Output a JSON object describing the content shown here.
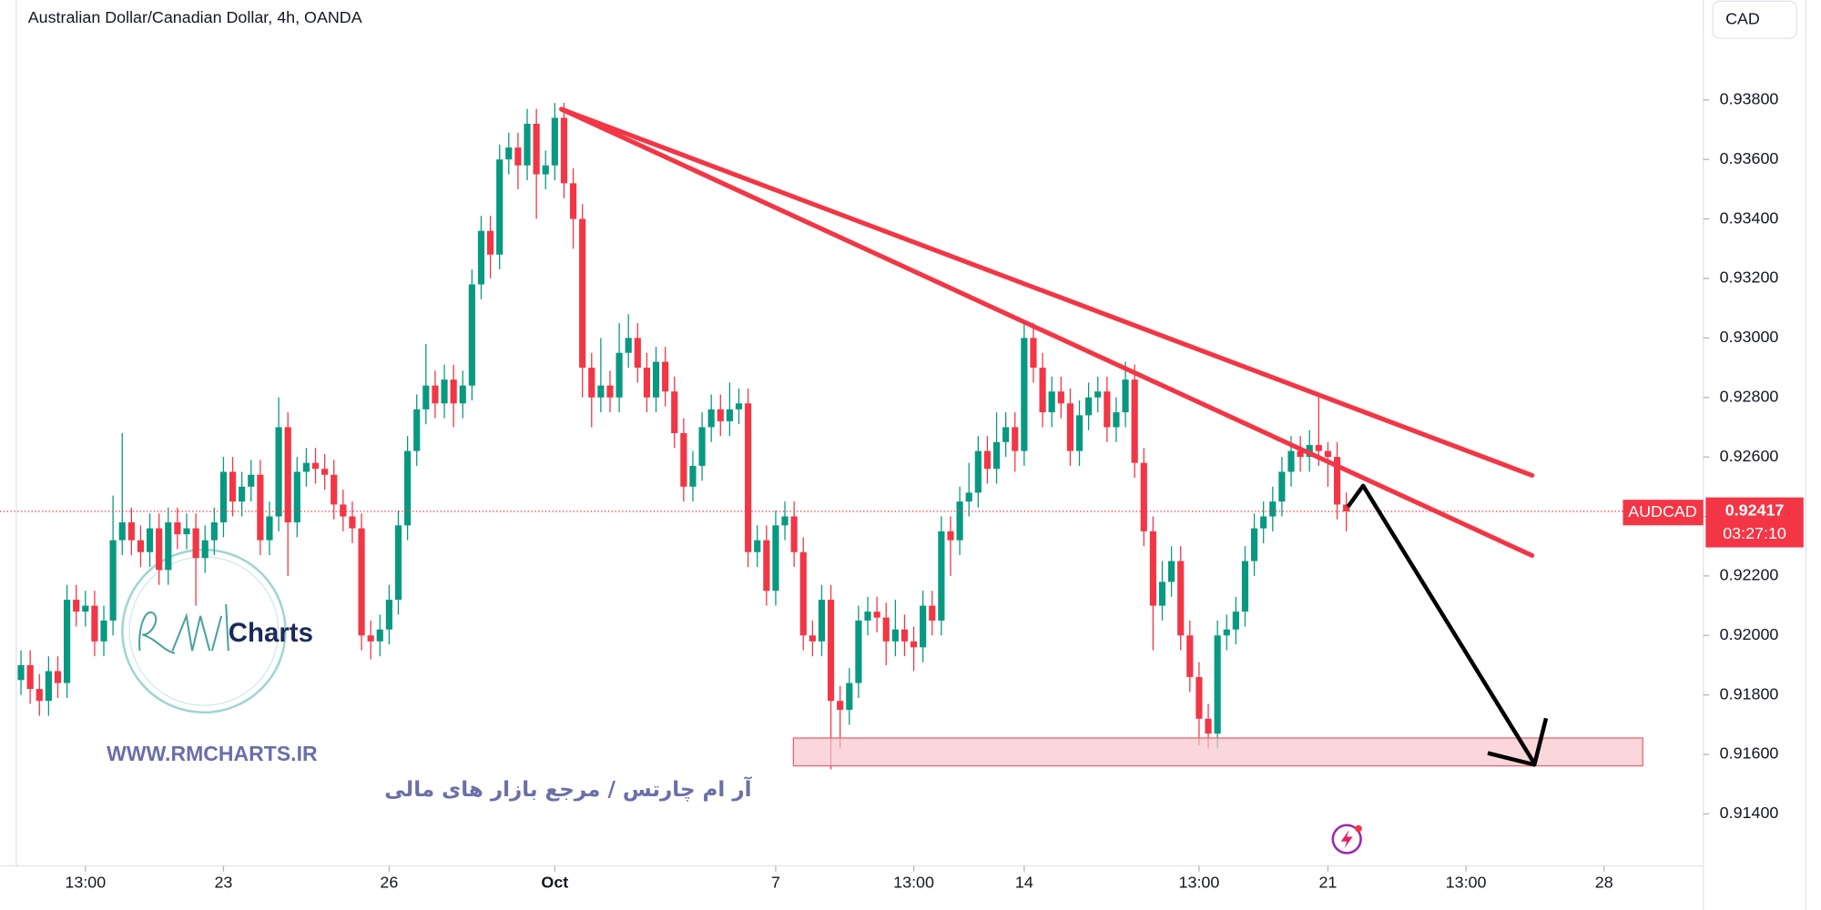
{
  "chart_data": {
    "type": "candlestick",
    "title": "Australian Dollar/Canadian Dollar, 4h, OANDA",
    "currency": "CAD",
    "symbol": "AUDCAD",
    "countdown": "03:27:10",
    "up_color": "#089981",
    "down_color": "#f23645",
    "open": [
      0.9185,
      0.919,
      0.9182,
      0.9178,
      0.9188,
      0.9184,
      0.9212,
      0.9208,
      0.921,
      0.9198,
      0.9205,
      0.9232,
      0.9238,
      0.9232,
      0.9228,
      0.9236,
      0.9222,
      0.9238,
      0.9234,
      0.9236,
      0.9226,
      0.9232,
      0.9238,
      0.9255,
      0.9245,
      0.925,
      0.9254,
      0.9232,
      0.924,
      0.927,
      0.9238,
      0.9255,
      0.9258,
      0.9256,
      0.9254,
      0.9244,
      0.924,
      0.9236,
      0.92,
      0.9198,
      0.9202,
      0.9212,
      0.9237,
      0.9262,
      0.9276,
      0.9284,
      0.9278,
      0.9286,
      0.9278,
      0.9284,
      0.9318,
      0.9336,
      0.9328,
      0.936,
      0.9364,
      0.9358,
      0.9372,
      0.9355,
      0.9358,
      0.9374,
      0.9352,
      0.934,
      0.929,
      0.928,
      0.9284,
      0.928,
      0.9295,
      0.93,
      0.929,
      0.928,
      0.9292,
      0.9282,
      0.9268,
      0.925,
      0.9257,
      0.927,
      0.9276,
      0.9272,
      0.9276,
      0.9278,
      0.9228,
      0.9232,
      0.9215,
      0.9237,
      0.924,
      0.9228,
      0.92,
      0.9198,
      0.9212,
      0.9178,
      0.9175,
      0.9184,
      0.9205,
      0.9208,
      0.9206,
      0.9198,
      0.9202,
      0.9198,
      0.9196,
      0.921,
      0.9205,
      0.9235,
      0.9232,
      0.9245,
      0.9248,
      0.9262,
      0.9256,
      0.9265,
      0.927,
      0.9262,
      0.93,
      0.929,
      0.9275,
      0.9282,
      0.9278,
      0.9262,
      0.9274,
      0.928,
      0.9282,
      0.927,
      0.9275,
      0.9286,
      0.9258,
      0.9235,
      0.921,
      0.9218,
      0.9225,
      0.92,
      0.9186,
      0.9172,
      0.9167,
      0.92,
      0.9202,
      0.9208,
      0.9225,
      0.9236,
      0.924,
      0.9245,
      0.9255,
      0.9262,
      0.926,
      0.9264,
      0.9262,
      0.926,
      0.9244
    ],
    "high": [
      0.9195,
      0.9195,
      0.9187,
      0.9193,
      0.9193,
      0.9217,
      0.9217,
      0.9215,
      0.9215,
      0.921,
      0.9247,
      0.9268,
      0.9243,
      0.9237,
      0.9241,
      0.9241,
      0.9243,
      0.9243,
      0.9241,
      0.9241,
      0.9237,
      0.9243,
      0.926,
      0.926,
      0.9255,
      0.9259,
      0.9259,
      0.9245,
      0.928,
      0.9275,
      0.926,
      0.9263,
      0.9263,
      0.9261,
      0.9259,
      0.9249,
      0.9245,
      0.9241,
      0.9205,
      0.9207,
      0.9217,
      0.9242,
      0.9267,
      0.9281,
      0.9298,
      0.9289,
      0.9291,
      0.9291,
      0.9289,
      0.9323,
      0.9341,
      0.9341,
      0.9365,
      0.9369,
      0.9369,
      0.9377,
      0.9377,
      0.9363,
      0.9379,
      0.9379,
      0.9357,
      0.9345,
      0.9295,
      0.93,
      0.9289,
      0.9305,
      0.9308,
      0.9305,
      0.9295,
      0.9297,
      0.9297,
      0.9287,
      0.9273,
      0.9262,
      0.9275,
      0.9281,
      0.9281,
      0.9285,
      0.9283,
      0.9283,
      0.9237,
      0.9237,
      0.9242,
      0.9245,
      0.9245,
      0.9233,
      0.9205,
      0.9217,
      0.9217,
      0.9183,
      0.9189,
      0.921,
      0.9213,
      0.9213,
      0.9211,
      0.9212,
      0.9207,
      0.9203,
      0.9215,
      0.9215,
      0.924,
      0.924,
      0.925,
      0.9258,
      0.9267,
      0.9267,
      0.9275,
      0.9275,
      0.9275,
      0.9305,
      0.9305,
      0.9295,
      0.9287,
      0.9287,
      0.9283,
      0.9279,
      0.9285,
      0.9287,
      0.9287,
      0.928,
      0.9292,
      0.9291,
      0.9263,
      0.924,
      0.9225,
      0.923,
      0.923,
      0.9205,
      0.9191,
      0.9177,
      0.9205,
      0.9207,
      0.9213,
      0.923,
      0.9241,
      0.9245,
      0.925,
      0.926,
      0.9267,
      0.9267,
      0.9269,
      0.928,
      0.9265,
      0.9265,
      0.9248
    ],
    "low": [
      0.918,
      0.9177,
      0.9173,
      0.9173,
      0.9179,
      0.9179,
      0.9203,
      0.9203,
      0.9193,
      0.9193,
      0.92,
      0.9227,
      0.9227,
      0.9223,
      0.9223,
      0.9217,
      0.9217,
      0.9229,
      0.9229,
      0.921,
      0.9221,
      0.9227,
      0.9233,
      0.924,
      0.924,
      0.9245,
      0.9227,
      0.9227,
      0.9235,
      0.922,
      0.9233,
      0.925,
      0.9251,
      0.9249,
      0.9239,
      0.9235,
      0.9231,
      0.9195,
      0.9192,
      0.9193,
      0.9197,
      0.9207,
      0.9232,
      0.9257,
      0.9271,
      0.9273,
      0.9273,
      0.927,
      0.9273,
      0.9279,
      0.9313,
      0.932,
      0.9323,
      0.9355,
      0.935,
      0.9353,
      0.934,
      0.935,
      0.9353,
      0.9347,
      0.933,
      0.928,
      0.927,
      0.9275,
      0.9275,
      0.9275,
      0.929,
      0.9285,
      0.9275,
      0.9275,
      0.9277,
      0.9263,
      0.9245,
      0.9245,
      0.9252,
      0.9265,
      0.9267,
      0.9267,
      0.9271,
      0.9223,
      0.9223,
      0.921,
      0.921,
      0.9232,
      0.9223,
      0.9195,
      0.9193,
      0.9193,
      0.9155,
      0.9162,
      0.917,
      0.9179,
      0.92,
      0.9201,
      0.919,
      0.9193,
      0.9193,
      0.9188,
      0.9191,
      0.92,
      0.92,
      0.922,
      0.9227,
      0.924,
      0.9243,
      0.9251,
      0.9251,
      0.926,
      0.9255,
      0.9257,
      0.9285,
      0.927,
      0.927,
      0.9273,
      0.9257,
      0.9257,
      0.9269,
      0.9275,
      0.9265,
      0.9265,
      0.927,
      0.9253,
      0.923,
      0.9195,
      0.9205,
      0.9213,
      0.9195,
      0.9181,
      0.9163,
      0.9162,
      0.9162,
      0.9195,
      0.9197,
      0.9203,
      0.922,
      0.9231,
      0.9235,
      0.924,
      0.925,
      0.9255,
      0.9255,
      0.9257,
      0.925,
      0.9239,
      0.9235
    ],
    "close": [
      0.919,
      0.9182,
      0.9178,
      0.9188,
      0.9184,
      0.9212,
      0.9208,
      0.921,
      0.9198,
      0.9205,
      0.9232,
      0.9238,
      0.9232,
      0.9228,
      0.9236,
      0.9222,
      0.9238,
      0.9234,
      0.9236,
      0.9226,
      0.9232,
      0.9238,
      0.9255,
      0.9245,
      0.925,
      0.9254,
      0.9232,
      0.924,
      0.927,
      0.9238,
      0.9255,
      0.9258,
      0.9256,
      0.9254,
      0.9244,
      0.924,
      0.9236,
      0.92,
      0.9198,
      0.9202,
      0.9212,
      0.9237,
      0.9262,
      0.9276,
      0.9284,
      0.9278,
      0.9286,
      0.9278,
      0.9284,
      0.9318,
      0.9336,
      0.9328,
      0.936,
      0.9364,
      0.9358,
      0.9372,
      0.9355,
      0.9358,
      0.9374,
      0.9352,
      0.934,
      0.929,
      0.928,
      0.9284,
      0.928,
      0.9295,
      0.93,
      0.929,
      0.928,
      0.9292,
      0.9282,
      0.9268,
      0.925,
      0.9257,
      0.927,
      0.9276,
      0.9272,
      0.9276,
      0.9278,
      0.9228,
      0.9232,
      0.9215,
      0.9237,
      0.924,
      0.9228,
      0.92,
      0.9198,
      0.9212,
      0.9178,
      0.9175,
      0.9184,
      0.9205,
      0.9208,
      0.9206,
      0.9198,
      0.9202,
      0.9198,
      0.9196,
      0.921,
      0.9205,
      0.9235,
      0.9232,
      0.9245,
      0.9248,
      0.9262,
      0.9256,
      0.9265,
      0.927,
      0.9262,
      0.93,
      0.929,
      0.9275,
      0.9282,
      0.9278,
      0.9262,
      0.9274,
      0.928,
      0.9282,
      0.927,
      0.9275,
      0.9286,
      0.9258,
      0.9235,
      0.921,
      0.9218,
      0.9225,
      0.92,
      0.9186,
      0.9172,
      0.9167,
      0.92,
      0.9202,
      0.9208,
      0.9225,
      0.9236,
      0.924,
      0.9245,
      0.9255,
      0.9262,
      0.926,
      0.9264,
      0.9262,
      0.926,
      0.9244,
      0.92417
    ],
    "xlim": [
      -2.28,
      181.27
    ],
    "xticks": [
      {
        "value": 7,
        "label": "13:00"
      },
      {
        "value": 22,
        "label": "23"
      },
      {
        "value": 40,
        "label": "26"
      },
      {
        "value": 58,
        "label": "Oct"
      },
      {
        "value": 82,
        "label": "7"
      },
      {
        "value": 97,
        "label": "13:00"
      },
      {
        "value": 109,
        "label": "14"
      },
      {
        "value": 128,
        "label": "13:00"
      },
      {
        "value": 142,
        "label": "21"
      },
      {
        "value": 157,
        "label": "13:00"
      },
      {
        "value": 172,
        "label": "28"
      }
    ],
    "ylim": [
      0.91245,
      0.94136
    ],
    "yticks": [
      {
        "value": 0.914,
        "label": "0.91400"
      },
      {
        "value": 0.916,
        "label": "0.91600"
      },
      {
        "value": 0.918,
        "label": "0.91800"
      },
      {
        "value": 0.92,
        "label": "0.92000"
      },
      {
        "value": 0.922,
        "label": "0.92200"
      },
      {
        "value": 0.924,
        "label": "0.92400"
      },
      {
        "value": 0.926,
        "label": "0.92600"
      },
      {
        "value": 0.928,
        "label": "0.92800"
      },
      {
        "value": 0.93,
        "label": "0.93000"
      },
      {
        "value": 0.932,
        "label": "0.93200"
      },
      {
        "value": 0.934,
        "label": "0.93400"
      },
      {
        "value": 0.936,
        "label": "0.93600"
      },
      {
        "value": 0.938,
        "label": "0.93800"
      }
    ],
    "grid": false
  },
  "watermark": {
    "logo": "Charts",
    "url": "WWW.RMCHARTS.IR",
    "tagline": "آر ام چارتس / مرجع بازار های مالی"
  }
}
